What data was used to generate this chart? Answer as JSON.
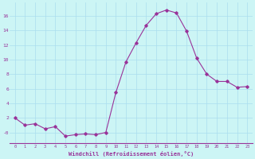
{
  "x": [
    0,
    1,
    2,
    3,
    4,
    5,
    6,
    7,
    8,
    9,
    10,
    11,
    12,
    13,
    14,
    15,
    16,
    17,
    18,
    19,
    20,
    21,
    22,
    23
  ],
  "y": [
    2,
    1,
    1.2,
    0.5,
    0.8,
    -0.5,
    -0.3,
    -0.2,
    -0.3,
    0.0,
    5.5,
    9.7,
    12.3,
    14.7,
    16.3,
    16.8,
    16.4,
    13.9,
    10.2,
    8.0,
    7.0,
    7.0,
    6.2,
    6.3
  ],
  "line_color": "#993399",
  "marker": "D",
  "marker_size": 1.8,
  "bg_color": "#ccf5f5",
  "grid_color": "#aaddee",
  "xlabel": "Windchill (Refroidissement éolien,°C)",
  "xlabel_color": "#993399",
  "tick_color": "#993399",
  "ytick_values": [
    0,
    2,
    4,
    6,
    8,
    10,
    12,
    14,
    16
  ],
  "ytick_labels": [
    "-0",
    "2",
    "4",
    "6",
    "8",
    "10",
    "12",
    "14",
    "16"
  ],
  "ylim": [
    -1.5,
    17.8
  ],
  "xlim": [
    -0.5,
    23.5
  ],
  "xtick_labels": [
    "0",
    "1",
    "2",
    "3",
    "4",
    "5",
    "6",
    "7",
    "8",
    "9",
    "10",
    "11",
    "12",
    "13",
    "14",
    "15",
    "16",
    "17",
    "18",
    "19",
    "20",
    "21",
    "22",
    "23"
  ]
}
